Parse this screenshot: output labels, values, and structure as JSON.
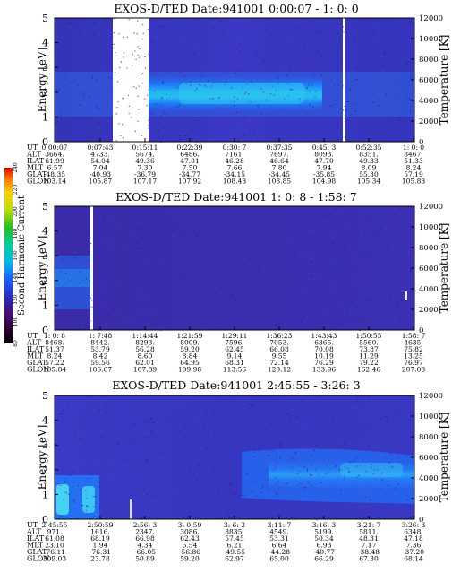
{
  "chart_data": {
    "type": "heatmap",
    "colorbar": {
      "label": "Second Harmonic Current",
      "ticks": [
        "80",
        "100",
        "120",
        "140",
        "160",
        "180",
        "200",
        "220",
        "240"
      ],
      "range": [
        80,
        240
      ]
    },
    "panels": [
      {
        "title": "EXOS-D/TED   Date:941001  0:00:07 - 1: 0: 0",
        "ylabel_left": "Energy [eV]",
        "ylabel_right": "Temperature [K]",
        "yticks_left": [
          "0",
          "1",
          "2",
          "3",
          "4",
          "5"
        ],
        "yticks_right": [
          "0",
          "2000",
          "4000",
          "6000",
          "8000",
          "10000",
          "12000"
        ],
        "ylim_left": [
          0,
          5
        ],
        "ylim_right": [
          0,
          12000
        ],
        "row_labels": [
          "UT",
          "ALT",
          "ILAT",
          "MLT",
          "GLAT",
          "GLON"
        ],
        "columns": [
          [
            "0:00:07",
            "3664.",
            "61.99",
            "6.57",
            "-48.35",
            "103.14"
          ],
          [
            "0:07:43",
            "4733.",
            "54.04",
            "7.04",
            "-40.93",
            "105.87"
          ],
          [
            "0:15:11",
            "5674.",
            "49.36",
            "7.30",
            "-36.79",
            "107.17"
          ],
          [
            "0:22:39",
            "6486.",
            "47.01",
            "7.50",
            "-34.77",
            "107.92"
          ],
          [
            "0:30: 7",
            "7161.",
            "46.28",
            "7.66",
            "-34.15",
            "108.43"
          ],
          [
            "0:37:35",
            "7697.",
            "46.64",
            "7.80",
            "-34.45",
            "108.85"
          ],
          [
            "0:45: 3",
            "8093.",
            "47.70",
            "7.94",
            "-35.85",
            "104.98"
          ],
          [
            "0:52:35",
            "8351.",
            "49.33",
            "8.09",
            "55.30",
            "105.34"
          ],
          [
            "1: 0: 0",
            "8467.",
            "51.33",
            "8.24",
            "57.19",
            "105.83"
          ]
        ]
      },
      {
        "title": "EXOS-D/TED   Date:941001  1: 0: 8 - 1:58: 7",
        "ylabel_left": "Energy [eV]",
        "ylabel_right": "Temperature [K]",
        "yticks_left": [
          "0",
          "1",
          "2",
          "3",
          "4",
          "5"
        ],
        "yticks_right": [
          "0",
          "2000",
          "4000",
          "6000",
          "8000",
          "10000",
          "12000"
        ],
        "ylim_left": [
          0,
          5
        ],
        "ylim_right": [
          0,
          12000
        ],
        "row_labels": [
          "UT",
          "ALT",
          "ILAT",
          "MLT",
          "GLAT",
          "GLON"
        ],
        "columns": [
          [
            "1: 0: 8",
            "8468.",
            "51.37",
            "8.24",
            "57.22",
            "105.84"
          ],
          [
            "1: 7:48",
            "8442.",
            "53.79",
            "8.42",
            "59.56",
            "106.67"
          ],
          [
            "1:14:44",
            "8293.",
            "56.28",
            "8.60",
            "62.01",
            "107.89"
          ],
          [
            "1:21:59",
            "8009.",
            "59.20",
            "8.84",
            "64.95",
            "109.98"
          ],
          [
            "1:29:11",
            "7596.",
            "62.45",
            "9.14",
            "68.31",
            "113.56"
          ],
          [
            "1:36:23",
            "7053.",
            "66.08",
            "9.55",
            "72.14",
            "120.12"
          ],
          [
            "1:43:43",
            "6365.",
            "70.08",
            "10.19",
            "76.29",
            "133.96"
          ],
          [
            "1:50:55",
            "5560.",
            "73.87",
            "11.29",
            "79.22",
            "162.46"
          ],
          [
            "1:58: 7",
            "4635.",
            "75.82",
            "13.25",
            "76.97",
            "207.08"
          ]
        ]
      },
      {
        "title": "EXOS-D/TED   Date:941001  2:45:55 - 3:26: 3",
        "ylabel_left": "Energy [eV]",
        "ylabel_right": "Temperature [K]",
        "yticks_left": [
          "0",
          "1",
          "2",
          "3",
          "4",
          "5"
        ],
        "yticks_right": [
          "0",
          "2000",
          "4000",
          "6000",
          "8000",
          "10000",
          "12000"
        ],
        "ylim_left": [
          0,
          5
        ],
        "ylim_right": [
          0,
          12000
        ],
        "row_labels": [
          "UT",
          "ALT",
          "ILAT",
          "MLT",
          "GLAT",
          "GLON"
        ],
        "columns": [
          [
            "2:45:55",
            "971.",
            "61.08",
            "23.10",
            "-76.11",
            "309.03"
          ],
          [
            "2:50:59",
            "1616.",
            "68.19",
            "1.94",
            "-76.31",
            "23.78"
          ],
          [
            "2:56: 3",
            "2347.",
            "66.98",
            "4.34",
            "-66.05",
            "50.89"
          ],
          [
            "3: 0:59",
            "3086.",
            "62.43",
            "5.54",
            "-56.86",
            "59.20"
          ],
          [
            "3: 6: 3",
            "3835.",
            "57.45",
            "6.21",
            "-49.55",
            "62.97"
          ],
          [
            "3:11: 7",
            "4549.",
            "53.31",
            "6.64",
            "-44.28",
            "65.00"
          ],
          [
            "3:16: 3",
            "5199.",
            "50.34",
            "6.93",
            "-40.77",
            "66.29"
          ],
          [
            "3:21: 7",
            "5811.",
            "48.31",
            "7.17",
            "-38.48",
            "67.30"
          ],
          [
            "3:26: 3",
            "6348.",
            "47.18",
            "7.36",
            "-37.20",
            "68.14"
          ]
        ]
      }
    ]
  }
}
